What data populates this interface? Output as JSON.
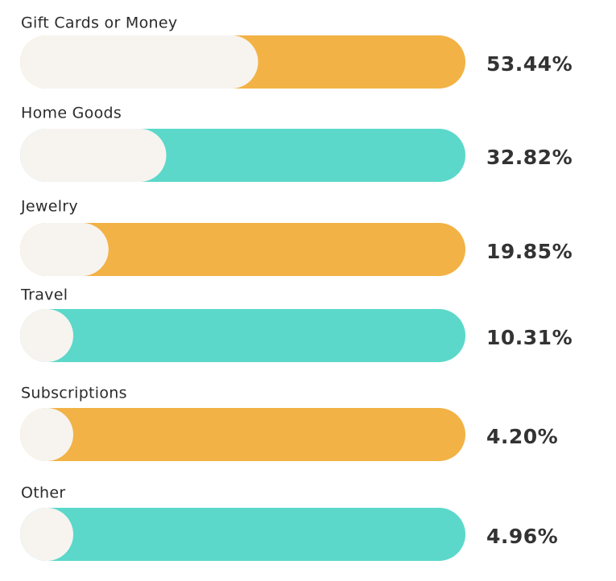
{
  "chart_data": {
    "type": "bar",
    "orientation": "horizontal",
    "categories": [
      "Gift Cards or Money",
      "Home Goods",
      "Jewelry",
      "Travel",
      "Subscriptions",
      "Other"
    ],
    "values": [
      53.44,
      32.82,
      19.85,
      10.31,
      4.2,
      4.96
    ],
    "value_labels": [
      "53.44%",
      "32.82%",
      "19.85%",
      "10.31%",
      "4.20%",
      "4.96%"
    ],
    "colors": [
      "#f2b245",
      "#5bd8ca",
      "#f2b245",
      "#5bd8ca",
      "#f2b245",
      "#5bd8ca"
    ],
    "fill_color": "#f7f4f0",
    "xlim": [
      0,
      100
    ]
  }
}
